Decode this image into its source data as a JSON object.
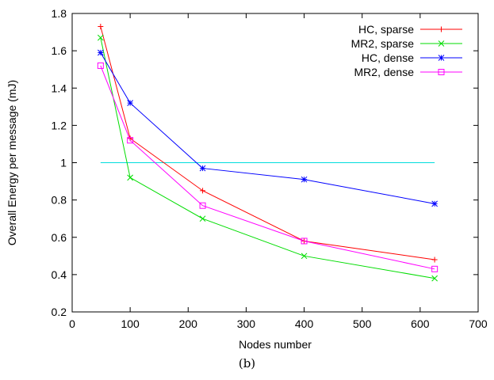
{
  "caption": "(b)",
  "chart_data": {
    "type": "line",
    "title": "",
    "xlabel": "Nodes number",
    "ylabel": "Overall Energy per message (mJ)",
    "xlim": [
      0,
      700
    ],
    "ylim": [
      0.2,
      1.8
    ],
    "xticks": [
      0,
      100,
      200,
      300,
      400,
      500,
      600,
      700
    ],
    "yticks": [
      0.2,
      0.4,
      0.6,
      0.8,
      1.0,
      1.2,
      1.4,
      1.6,
      1.8
    ],
    "xtick_labels": [
      "0",
      "100",
      "200",
      "300",
      "400",
      "500",
      "600",
      "700"
    ],
    "ytick_labels": [
      "0.2",
      "0.4",
      "0.6",
      "0.8",
      "1",
      "1.2",
      "1.4",
      "1.6",
      "1.8"
    ],
    "grid": false,
    "legend_position": "top-right",
    "series": [
      {
        "name": "HC, sparse",
        "color": "#ff0000",
        "marker": "plus",
        "x": [
          49,
          100,
          225,
          400,
          625
        ],
        "y": [
          1.73,
          1.13,
          0.85,
          0.58,
          0.48
        ]
      },
      {
        "name": "MR2, sparse",
        "color": "#00dd00",
        "marker": "cross",
        "x": [
          49,
          100,
          225,
          400,
          625
        ],
        "y": [
          1.67,
          0.92,
          0.7,
          0.5,
          0.38
        ]
      },
      {
        "name": "HC, dense",
        "color": "#0000ff",
        "marker": "star",
        "x": [
          49,
          100,
          225,
          400,
          625
        ],
        "y": [
          1.59,
          1.32,
          0.97,
          0.91,
          0.78
        ]
      },
      {
        "name": "MR2, dense",
        "color": "#ff00ff",
        "marker": "square",
        "x": [
          49,
          100,
          225,
          400,
          625
        ],
        "y": [
          1.52,
          1.12,
          0.77,
          0.58,
          0.43
        ]
      }
    ],
    "reference_line": {
      "color": "#00dddd",
      "x": [
        49,
        625
      ],
      "y": [
        1.0,
        1.0
      ]
    }
  }
}
